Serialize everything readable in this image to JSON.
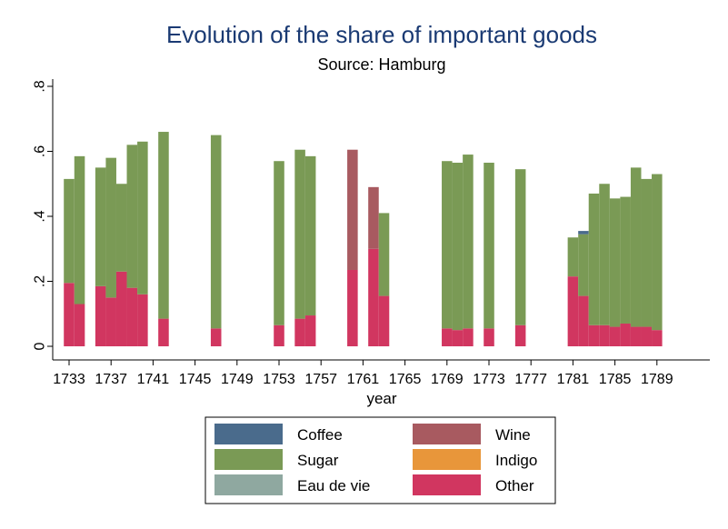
{
  "chart_data": {
    "type": "bar",
    "stacked": true,
    "title": "Evolution of the share of important goods",
    "subtitle": "Source: Hamburg",
    "xlabel": "year",
    "ylabel": "",
    "xlim": [
      1732,
      1790
    ],
    "ylim": [
      0,
      0.8
    ],
    "x_ticks": [
      1733,
      1737,
      1741,
      1745,
      1749,
      1753,
      1757,
      1761,
      1765,
      1769,
      1773,
      1777,
      1781,
      1785,
      1789
    ],
    "y_ticks": [
      0,
      0.2,
      0.4,
      0.6,
      0.8
    ],
    "y_tick_labels": [
      "0",
      ".2",
      ".4",
      ".6",
      ".8"
    ],
    "grid": false,
    "legend_position": "bottom",
    "legend_columns": 2,
    "legend": [
      {
        "name": "Coffee",
        "color": "#4a6b8c"
      },
      {
        "name": "Wine",
        "color": "#a85a60"
      },
      {
        "name": "Sugar",
        "color": "#7a9a55"
      },
      {
        "name": "Indigo",
        "color": "#e8963a"
      },
      {
        "name": "Eau de vie",
        "color": "#8fa8a0"
      },
      {
        "name": "Other",
        "color": "#d13660"
      }
    ],
    "stack_order": [
      "Other",
      "Sugar",
      "Eau de vie",
      "Indigo",
      "Wine",
      "Coffee"
    ],
    "bars": [
      {
        "x": 1733,
        "Other": 0.195,
        "Sugar": 0.32
      },
      {
        "x": 1734,
        "Other": 0.13,
        "Sugar": 0.455
      },
      {
        "x": 1736,
        "Other": 0.185,
        "Sugar": 0.365
      },
      {
        "x": 1737,
        "Other": 0.15,
        "Sugar": 0.43
      },
      {
        "x": 1738,
        "Other": 0.23,
        "Sugar": 0.27
      },
      {
        "x": 1739,
        "Other": 0.18,
        "Sugar": 0.44
      },
      {
        "x": 1740,
        "Other": 0.16,
        "Sugar": 0.47
      },
      {
        "x": 1742,
        "Other": 0.085,
        "Sugar": 0.575
      },
      {
        "x": 1747,
        "Other": 0.055,
        "Sugar": 0.595
      },
      {
        "x": 1753,
        "Other": 0.065,
        "Sugar": 0.505
      },
      {
        "x": 1755,
        "Other": 0.085,
        "Sugar": 0.52
      },
      {
        "x": 1756,
        "Other": 0.095,
        "Sugar": 0.49
      },
      {
        "x": 1760,
        "Other": 0.235,
        "Wine": 0.37
      },
      {
        "x": 1762,
        "Other": 0.3,
        "Wine": 0.19
      },
      {
        "x": 1763,
        "Other": 0.155,
        "Sugar": 0.255
      },
      {
        "x": 1769,
        "Other": 0.055,
        "Sugar": 0.515
      },
      {
        "x": 1770,
        "Other": 0.05,
        "Sugar": 0.515
      },
      {
        "x": 1771,
        "Other": 0.055,
        "Sugar": 0.535
      },
      {
        "x": 1773,
        "Other": 0.055,
        "Sugar": 0.51
      },
      {
        "x": 1776,
        "Other": 0.065,
        "Sugar": 0.48
      },
      {
        "x": 1781,
        "Other": 0.215,
        "Sugar": 0.12
      },
      {
        "x": 1782,
        "Other": 0.155,
        "Sugar": 0.19,
        "Coffee": 0.01
      },
      {
        "x": 1783,
        "Other": 0.065,
        "Sugar": 0.405
      },
      {
        "x": 1784,
        "Other": 0.065,
        "Sugar": 0.435
      },
      {
        "x": 1785,
        "Other": 0.06,
        "Sugar": 0.395
      },
      {
        "x": 1786,
        "Other": 0.07,
        "Sugar": 0.39
      },
      {
        "x": 1787,
        "Other": 0.06,
        "Sugar": 0.49
      },
      {
        "x": 1788,
        "Other": 0.06,
        "Sugar": 0.455
      },
      {
        "x": 1789,
        "Other": 0.05,
        "Sugar": 0.48
      }
    ]
  }
}
